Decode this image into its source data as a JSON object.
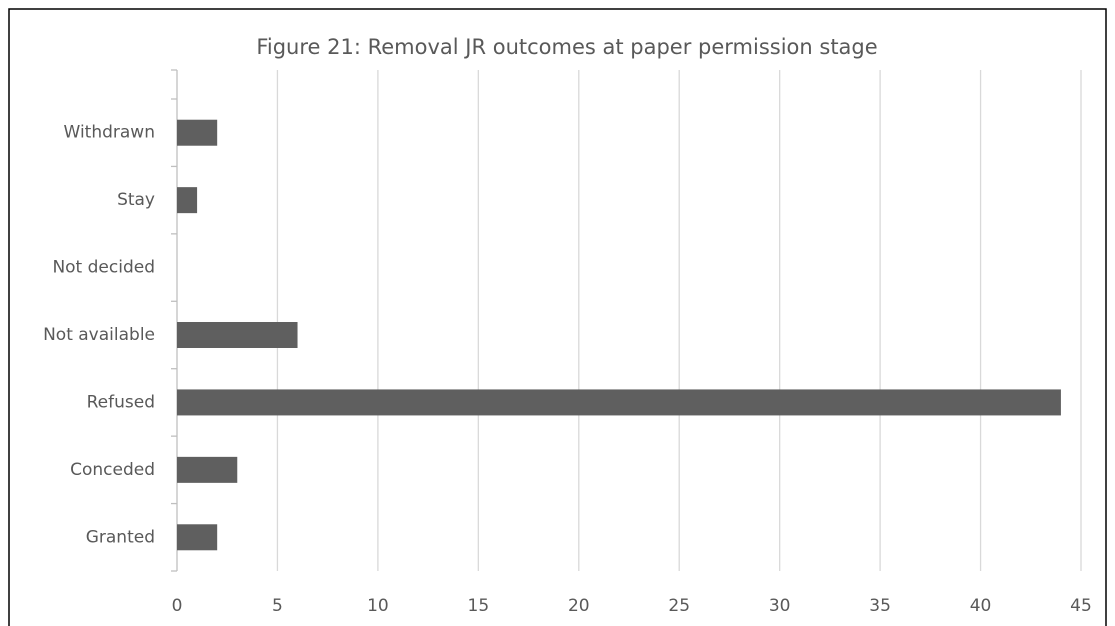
{
  "chart_data": {
    "type": "hbar",
    "title": "Figure 21: Removal JR outcomes at paper permission stage",
    "categories": [
      "Withdrawn",
      "Stay",
      "Not decided",
      "Not available",
      "Refused",
      "Conceded",
      "Granted"
    ],
    "values": [
      2,
      1,
      0,
      6,
      44,
      3,
      2
    ],
    "color": "#5f5f5f",
    "xlim": [
      0,
      45
    ],
    "xticks": [
      0,
      5,
      10,
      15,
      20,
      25,
      30,
      35,
      40,
      45
    ],
    "grid": true
  }
}
